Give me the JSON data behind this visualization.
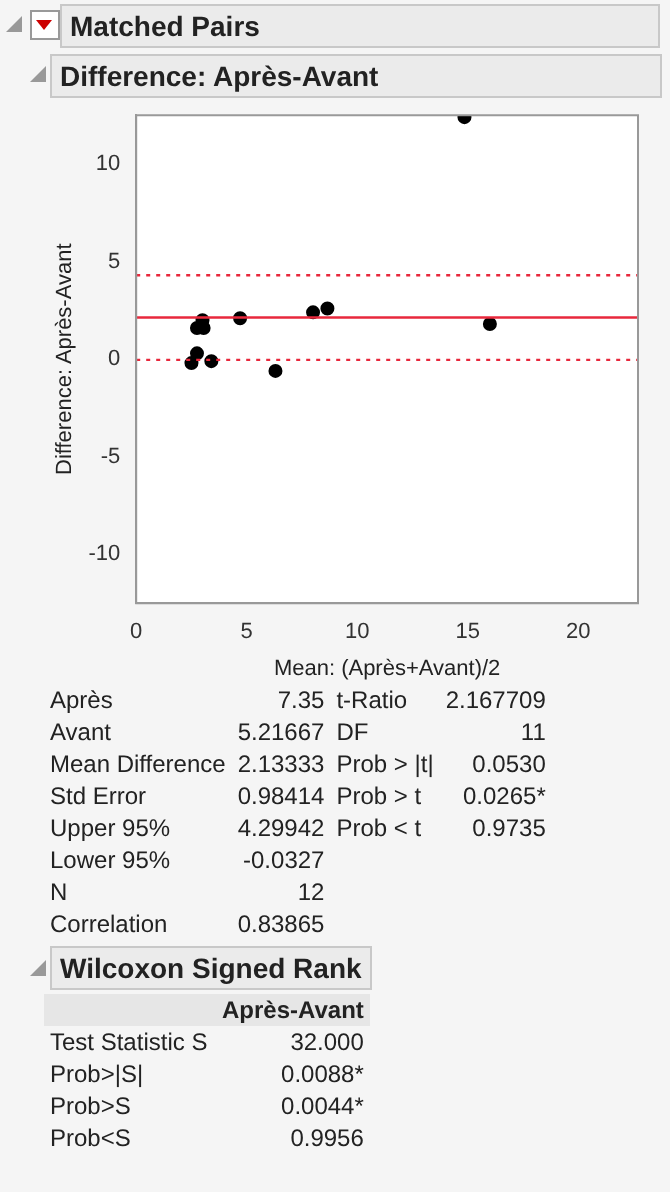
{
  "chart_data": {
    "type": "scatter",
    "title": "Matched Pairs",
    "subtitle": "Difference: Après-Avant",
    "xlabel": "Mean: (Après+Avant)/2",
    "ylabel": "Difference: Après-Avant",
    "x": [
      2.5,
      2.75,
      2.75,
      3.05,
      3.0,
      3.4,
      4.7,
      6.3,
      8.0,
      8.65,
      14.85,
      16.0
    ],
    "values": [
      -0.2,
      0.3,
      1.6,
      1.6,
      2.0,
      -0.1,
      2.1,
      -0.6,
      2.4,
      2.6,
      12.4,
      1.8
    ],
    "color": "#000000",
    "marker": "circle",
    "xlim": [
      0,
      22.7
    ],
    "xticks": [
      0,
      5,
      10,
      15,
      20
    ],
    "ylim": [
      -12.5,
      12.5
    ],
    "yticks": [
      -10,
      -5,
      0,
      5,
      10
    ],
    "grid": false,
    "legend": false,
    "ref_lines": [
      {
        "axis": "y",
        "value": 2.13333,
        "color": "#e8283c",
        "line_style": "solid"
      },
      {
        "axis": "y",
        "value": 4.29942,
        "color": "#e8283c",
        "line_style": "dotted"
      },
      {
        "axis": "y",
        "value": -0.0327,
        "color": "#e8283c",
        "line_style": "dotted"
      }
    ],
    "annotations": [
      "Après\t7.35\tt-Ratio\t2.167709",
      "Avant\t5.21667\tDF\t11",
      "Mean Difference\t2.13333\tProb > |t|\t0.0530",
      "Std Error\t0.98414\tProb > t\t0.0265*",
      "Upper 95%\t4.29942\tProb < t\t0.9735",
      "Lower 95%\t-0.0327",
      "N\t12",
      "Correlation\t0.83865",
      "Wilcoxon Signed Rank",
      "\tAprès-Avant",
      "Test Statistic S\t32.000",
      "Prob>|S|\t0.0088*",
      "Prob>S\t0.0044*",
      "Prob<S\t0.9956"
    ]
  }
}
